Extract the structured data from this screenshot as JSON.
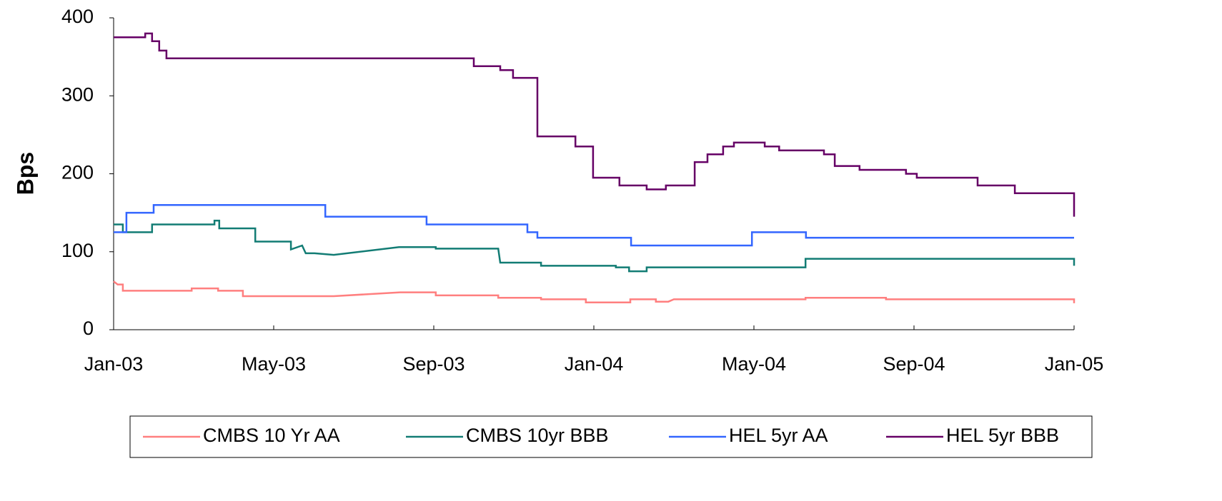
{
  "chart_data": {
    "type": "line",
    "ylabel": "Bps",
    "xlim": [
      0,
      24
    ],
    "xticks": [
      {
        "value": 0,
        "label": "Jan-03"
      },
      {
        "value": 4,
        "label": "May-03"
      },
      {
        "value": 8,
        "label": "Sep-03"
      },
      {
        "value": 12,
        "label": "Jan-04"
      },
      {
        "value": 16,
        "label": "May-04"
      },
      {
        "value": 20,
        "label": "Sep-04"
      },
      {
        "value": 24,
        "label": "Jan-05"
      }
    ],
    "ylim": [
      0,
      400
    ],
    "yticks": [
      0,
      100,
      200,
      300,
      400
    ],
    "grid": false,
    "legend": "bottom",
    "series": [
      {
        "name": "CMBS 10 Yr AA",
        "color": "#ff7f7f",
        "x": [
          0,
          0.1,
          0.23,
          0.23,
          1.95,
          1.95,
          2.61,
          2.61,
          3.23,
          3.23,
          5.5,
          7.16,
          8.05,
          8.05,
          9.61,
          9.61,
          10.68,
          10.68,
          11.8,
          11.8,
          12.91,
          12.91,
          13.55,
          13.55,
          13.86,
          14.0,
          17.29,
          17.29,
          19.3,
          19.3,
          24,
          24
        ],
        "values": [
          62,
          58,
          58,
          50,
          50,
          53,
          53,
          50,
          50,
          43,
          43,
          48,
          48,
          44,
          44,
          41,
          41,
          39,
          39,
          35,
          35,
          39,
          39,
          36,
          36,
          39,
          39,
          41,
          41,
          39,
          39,
          34
        ]
      },
      {
        "name": "CMBS 10yr BBB",
        "color": "#127c74",
        "x": [
          0,
          0.23,
          0.23,
          0.96,
          0.96,
          2.52,
          2.52,
          2.64,
          2.64,
          3.54,
          3.54,
          4.43,
          4.43,
          4.71,
          4.8,
          5.02,
          5.5,
          7.13,
          8.05,
          8.05,
          9.61,
          9.66,
          10.68,
          10.68,
          11.8,
          11.86,
          12.55,
          12.55,
          12.88,
          12.88,
          13.32,
          13.32,
          17.29,
          17.29,
          24,
          24
        ],
        "values": [
          135,
          135,
          125,
          125,
          135,
          135,
          140,
          140,
          130,
          130,
          113,
          113,
          103,
          108,
          98,
          98,
          96,
          106,
          106,
          104,
          104,
          86,
          86,
          82,
          82,
          82,
          82,
          80,
          80,
          75,
          75,
          80,
          80,
          91,
          91,
          82
        ]
      },
      {
        "name": "HEL 5yr AA",
        "color": "#3366ff",
        "x": [
          0,
          0.32,
          0.32,
          1.0,
          1.0,
          5.29,
          5.29,
          7.82,
          7.82,
          10.34,
          10.34,
          10.59,
          10.59,
          12.93,
          12.93,
          15.95,
          15.95,
          17.3,
          17.3,
          24
        ],
        "values": [
          125,
          125,
          150,
          150,
          160,
          160,
          145,
          145,
          135,
          135,
          125,
          125,
          118,
          118,
          108,
          108,
          125,
          125,
          118,
          118
        ]
      },
      {
        "name": "HEL 5yr BBB",
        "color": "#660066",
        "x": [
          0,
          0.79,
          0.79,
          0.96,
          0.96,
          1.14,
          1.14,
          1.32,
          1.32,
          9.0,
          9.0,
          9.66,
          9.66,
          9.98,
          9.98,
          10.59,
          10.59,
          11.54,
          11.54,
          11.98,
          11.98,
          12.64,
          12.64,
          13.32,
          13.32,
          13.8,
          13.8,
          14.52,
          14.52,
          14.84,
          14.84,
          15.23,
          15.23,
          15.5,
          15.5,
          16.27,
          16.27,
          16.63,
          16.63,
          17.75,
          17.75,
          18.02,
          18.02,
          18.64,
          18.64,
          19.8,
          19.8,
          20.07,
          20.07,
          21.59,
          21.59,
          22.52,
          22.52,
          24,
          24
        ],
        "values": [
          375,
          375,
          380,
          380,
          370,
          370,
          358,
          358,
          348,
          348,
          338,
          338,
          333,
          333,
          323,
          323,
          248,
          248,
          235,
          235,
          195,
          195,
          185,
          185,
          180,
          180,
          185,
          185,
          215,
          215,
          225,
          225,
          235,
          235,
          240,
          240,
          235,
          235,
          230,
          230,
          225,
          225,
          210,
          210,
          205,
          205,
          200,
          200,
          195,
          195,
          185,
          185,
          175,
          175,
          145
        ]
      }
    ]
  }
}
